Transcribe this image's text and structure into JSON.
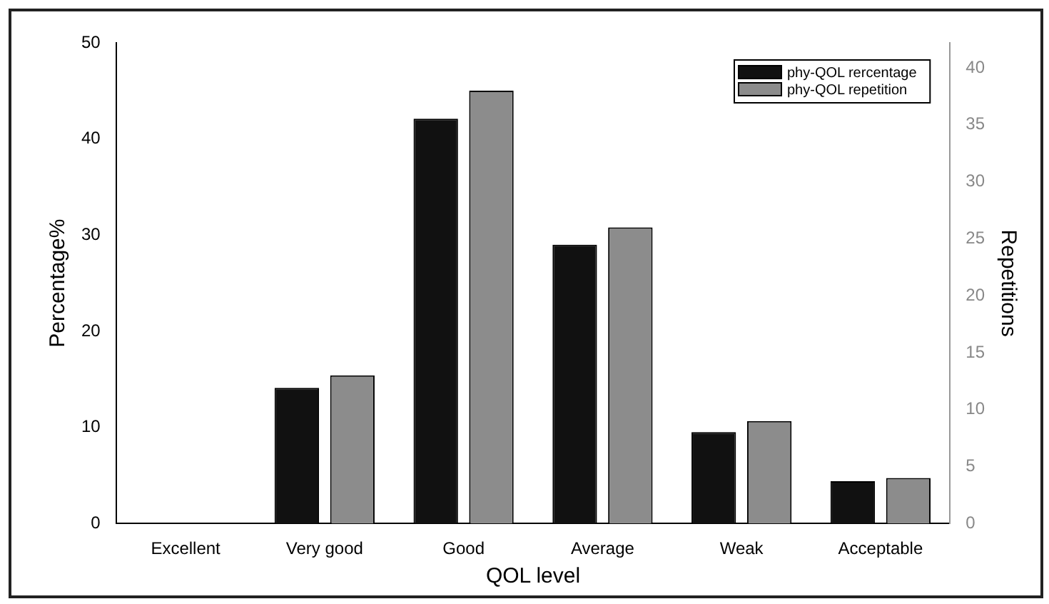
{
  "chart_data": {
    "type": "bar",
    "xlabel": "QOL level",
    "ylabel": "Percentage%",
    "y2label": "Repetitions",
    "categories": [
      "Excellent",
      "Very good",
      "Good",
      "Average",
      "Weak",
      "Acceptable"
    ],
    "series": [
      {
        "name": "phy-QOL rercentage",
        "color": "#111111",
        "values": [
          0,
          14.1,
          42.1,
          29.0,
          9.5,
          4.4
        ]
      },
      {
        "name": "phy-QOL repetition",
        "color": "#8c8c8c",
        "axis": "y2",
        "values": [
          0,
          13,
          38,
          26,
          9,
          4
        ]
      }
    ],
    "ylim": [
      0,
      50
    ],
    "yticks": [
      0,
      10,
      20,
      30,
      40,
      50
    ],
    "y2lim": [
      0,
      42.2
    ],
    "y2ticks": [
      0,
      5,
      10,
      15,
      20,
      25,
      30,
      35,
      40
    ],
    "grid": false,
    "legend": "top right"
  }
}
